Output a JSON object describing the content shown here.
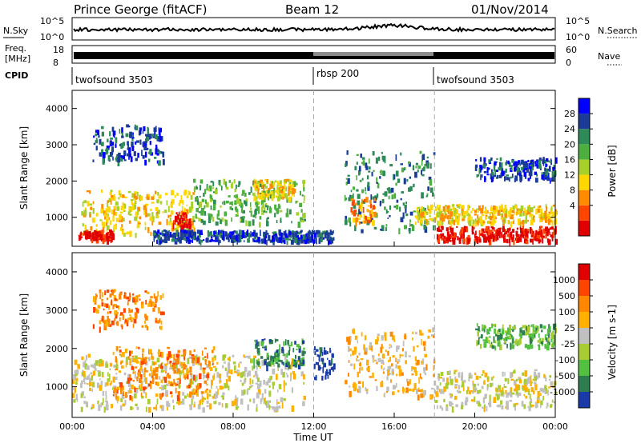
{
  "header": {
    "station": "Prince George (fitACF)",
    "beam": "Beam 12",
    "date": "01/Nov/2014"
  },
  "status_panel": {
    "nsky_label": "N.Sky",
    "nsky_ticks": [
      "10^5",
      "10^0"
    ],
    "nsearch_label": "N.Search",
    "nsearch_ticks": [
      "10^5",
      "10^0"
    ],
    "freq_label_line1": "Freq.",
    "freq_label_line2": "[MHz]",
    "freq_ticks": [
      "18",
      "8"
    ],
    "nave_label": "Nave",
    "nave_ticks": [
      "60",
      "0"
    ],
    "cpid_label": "CPID",
    "cpid_segments": [
      {
        "name": "twofsound 3503",
        "start_hour": 0
      },
      {
        "name": "rbsp 200",
        "start_hour": 12
      },
      {
        "name": "twofsound 3503",
        "start_hour": 18
      }
    ]
  },
  "x_axis": {
    "title": "Time UT",
    "tick_labels": [
      "00:00",
      "04:00",
      "08:00",
      "12:00",
      "16:00",
      "20:00",
      "00:00"
    ],
    "range_hours": [
      0,
      24
    ]
  },
  "power_scale": {
    "title": "Power [dB]",
    "ticks": [
      "28",
      "24",
      "20",
      "16",
      "12",
      "8",
      "4"
    ],
    "colors": [
      "#0000ff",
      "#1a3c96",
      "#2e8a57",
      "#4caf3f",
      "#a8d02a",
      "#ffd700",
      "#ff8c00",
      "#ff4500",
      "#e00000"
    ]
  },
  "velocity_scale": {
    "title": "Velocity [m s-1]",
    "ticks": [
      "1000",
      "500",
      "100",
      "25",
      "-25",
      "-100",
      "-500",
      "-1000"
    ],
    "colors": [
      "#1a3aaa",
      "#2e7d4e",
      "#53c042",
      "#aacc33",
      "#c0c0c0",
      "#ffb000",
      "#ff8800",
      "#ff4400",
      "#e00000"
    ]
  },
  "chart_data": [
    {
      "type": "heatmap",
      "quantity": "Power",
      "ylabel": "Slant Range [km]",
      "ylim": [
        200,
        4500
      ],
      "y_ticks": [
        1000,
        2000,
        3000,
        4000
      ],
      "xlabel": "Time UT",
      "xlim": [
        0,
        24
      ],
      "colorbar": {
        "label": "Power [dB]",
        "ticks": [
          4,
          8,
          12,
          16,
          20,
          24,
          28
        ]
      },
      "regions": [
        {
          "t0": 0.3,
          "t1": 6.0,
          "r0": 500,
          "r1": 1700,
          "level": 5
        },
        {
          "t0": 0.3,
          "t1": 2.0,
          "r0": 350,
          "r1": 600,
          "level": 8
        },
        {
          "t0": 1.0,
          "t1": 4.5,
          "r0": 2500,
          "r1": 3500,
          "level": 1
        },
        {
          "t0": 5.0,
          "t1": 5.8,
          "r0": 700,
          "r1": 1100,
          "level": 8
        },
        {
          "t0": 6.0,
          "t1": 11.5,
          "r0": 800,
          "r1": 2000,
          "level": 3
        },
        {
          "t0": 9.0,
          "t1": 11.0,
          "r0": 1500,
          "r1": 2000,
          "level": 5
        },
        {
          "t0": 4.0,
          "t1": 13.0,
          "r0": 300,
          "r1": 600,
          "level": 1
        },
        {
          "t0": 13.5,
          "t1": 18.0,
          "r0": 600,
          "r1": 2800,
          "level": 2
        },
        {
          "t0": 13.8,
          "t1": 15.0,
          "r0": 800,
          "r1": 1500,
          "level": 6
        },
        {
          "t0": 17.0,
          "t1": 24.0,
          "r0": 800,
          "r1": 1300,
          "level": 5
        },
        {
          "t0": 18.0,
          "t1": 24.0,
          "r0": 300,
          "r1": 700,
          "level": 8
        },
        {
          "t0": 20.0,
          "t1": 24.0,
          "r0": 2000,
          "r1": 2600,
          "level": 1
        }
      ]
    },
    {
      "type": "heatmap",
      "quantity": "Velocity",
      "ylabel": "Slant Range [km]",
      "ylim": [
        200,
        4500
      ],
      "y_ticks": [
        1000,
        2000,
        3000,
        4000
      ],
      "xlabel": "Time UT",
      "xlim": [
        0,
        24
      ],
      "colorbar": {
        "label": "Velocity [m s-1]",
        "ticks": [
          -1000,
          -500,
          -100,
          -25,
          25,
          100,
          500,
          1000
        ]
      },
      "regions": [
        {
          "t0": 0.0,
          "t1": 11.5,
          "r0": 400,
          "r1": 1800,
          "level": 4
        },
        {
          "t0": 2.0,
          "t1": 7.0,
          "r0": 700,
          "r1": 2000,
          "level": 6
        },
        {
          "t0": 1.0,
          "t1": 4.5,
          "r0": 2500,
          "r1": 3500,
          "level": 6
        },
        {
          "t0": 9.0,
          "t1": 11.5,
          "r0": 1500,
          "r1": 2200,
          "level": 1
        },
        {
          "t0": 12.0,
          "t1": 13.0,
          "r0": 1200,
          "r1": 2000,
          "level": 0
        },
        {
          "t0": 13.5,
          "t1": 18.0,
          "r0": 700,
          "r1": 2500,
          "level": 5
        },
        {
          "t0": 18.0,
          "t1": 24.0,
          "r0": 400,
          "r1": 1400,
          "level": 4
        },
        {
          "t0": 20.0,
          "t1": 24.0,
          "r0": 2000,
          "r1": 2600,
          "level": 2
        }
      ]
    }
  ]
}
